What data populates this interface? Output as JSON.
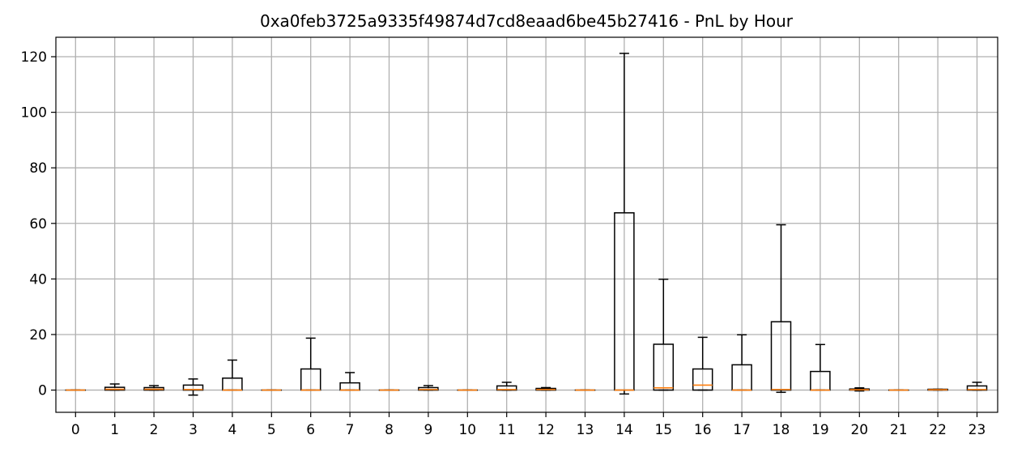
{
  "chart_data": {
    "type": "box",
    "title": "0xa0feb3725a9335f49874d7cd8eaad6be45b27416 - PnL by Hour",
    "xlabel": "",
    "ylabel": "",
    "categories": [
      "0",
      "1",
      "2",
      "3",
      "4",
      "5",
      "6",
      "7",
      "8",
      "9",
      "10",
      "11",
      "12",
      "13",
      "14",
      "15",
      "16",
      "17",
      "18",
      "19",
      "20",
      "21",
      "22",
      "23"
    ],
    "ylim": [
      -8,
      127
    ],
    "yticks": [
      0,
      20,
      40,
      60,
      80,
      100,
      120
    ],
    "grid": true,
    "boxes": [
      {
        "whislo": 0,
        "q1": 0,
        "med": 0,
        "q3": 0,
        "whishi": 0
      },
      {
        "whislo": 0,
        "q1": 0,
        "med": 0.3,
        "q3": 1.0,
        "whishi": 2.2
      },
      {
        "whislo": 0,
        "q1": 0,
        "med": 0.3,
        "q3": 0.9,
        "whishi": 1.6
      },
      {
        "whislo": -1.8,
        "q1": 0,
        "med": 0.2,
        "q3": 1.8,
        "whishi": 4.0
      },
      {
        "whislo": 0,
        "q1": 0,
        "med": 0,
        "q3": 4.3,
        "whishi": 10.8
      },
      {
        "whislo": 0,
        "q1": 0,
        "med": 0,
        "q3": 0,
        "whishi": 0
      },
      {
        "whislo": 0,
        "q1": 0,
        "med": 0,
        "q3": 7.6,
        "whishi": 18.7
      },
      {
        "whislo": 0,
        "q1": 0,
        "med": 0,
        "q3": 2.6,
        "whishi": 6.3
      },
      {
        "whislo": 0,
        "q1": 0,
        "med": 0,
        "q3": 0,
        "whishi": 0
      },
      {
        "whislo": 0,
        "q1": 0,
        "med": 0.2,
        "q3": 0.9,
        "whishi": 1.6
      },
      {
        "whislo": 0,
        "q1": 0,
        "med": 0,
        "q3": 0,
        "whishi": 0
      },
      {
        "whislo": 0,
        "q1": 0,
        "med": 0.2,
        "q3": 1.5,
        "whishi": 2.8
      },
      {
        "whislo": 0,
        "q1": 0,
        "med": 0.2,
        "q3": 0.6,
        "whishi": 0.9
      },
      {
        "whislo": 0,
        "q1": 0,
        "med": 0,
        "q3": 0,
        "whishi": 0
      },
      {
        "whislo": -1.4,
        "q1": 0,
        "med": 0,
        "q3": 63.8,
        "whishi": 121.2
      },
      {
        "whislo": 0,
        "q1": 0,
        "med": 0.8,
        "q3": 16.5,
        "whishi": 39.9
      },
      {
        "whislo": 0,
        "q1": 0,
        "med": 1.8,
        "q3": 7.6,
        "whishi": 19.0
      },
      {
        "whislo": 0,
        "q1": 0,
        "med": 0,
        "q3": 9.1,
        "whishi": 19.9
      },
      {
        "whislo": -0.8,
        "q1": 0,
        "med": 0.2,
        "q3": 24.6,
        "whishi": 59.5
      },
      {
        "whislo": 0,
        "q1": 0,
        "med": 0,
        "q3": 6.7,
        "whishi": 16.4
      },
      {
        "whislo": -0.3,
        "q1": 0,
        "med": 0.1,
        "q3": 0.4,
        "whishi": 0.8
      },
      {
        "whislo": 0,
        "q1": 0,
        "med": 0,
        "q3": 0,
        "whishi": 0
      },
      {
        "whislo": 0,
        "q1": 0,
        "med": 0.1,
        "q3": 0.3,
        "whishi": 0.3
      },
      {
        "whislo": 0,
        "q1": 0,
        "med": 0.2,
        "q3": 1.5,
        "whishi": 2.8
      }
    ],
    "colors": {
      "box": "#000000",
      "median": "#ff7f0e",
      "grid": "#b0b0b0"
    }
  }
}
